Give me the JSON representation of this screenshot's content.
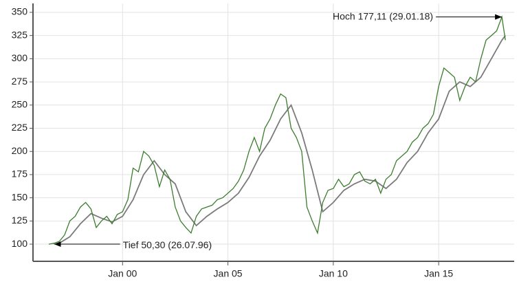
{
  "chart_data": {
    "type": "line",
    "xlim": [
      "1995-10",
      "2018-08"
    ],
    "xticks": [
      {
        "value": "2000-01",
        "label": "Jan 00"
      },
      {
        "value": "2005-01",
        "label": "Jan 05"
      },
      {
        "value": "2010-01",
        "label": "Jan 10"
      },
      {
        "value": "2015-01",
        "label": "Jan 15"
      }
    ],
    "ylim": [
      81.5,
      359.6
    ],
    "yticks": [
      100,
      125,
      150,
      175,
      200,
      225,
      250,
      275,
      300,
      325,
      350
    ],
    "grid": true,
    "series": [
      {
        "color": "#3a7d2c",
        "x": [
          "1996-07",
          "1996-10",
          "1997-01",
          "1997-04",
          "1997-07",
          "1997-10",
          "1998-01",
          "1998-04",
          "1998-07",
          "1998-10",
          "1999-01",
          "1999-04",
          "1999-07",
          "1999-10",
          "2000-01",
          "2000-04",
          "2000-07",
          "2000-10",
          "2001-01",
          "2001-04",
          "2001-07",
          "2001-10",
          "2002-01",
          "2002-04",
          "2002-07",
          "2002-10",
          "2003-01",
          "2003-04",
          "2003-07",
          "2003-10",
          "2004-01",
          "2004-04",
          "2004-07",
          "2004-10",
          "2005-01",
          "2005-04",
          "2005-07",
          "2005-10",
          "2006-01",
          "2006-04",
          "2006-07",
          "2006-10",
          "2007-01",
          "2007-04",
          "2007-07",
          "2007-10",
          "2008-01",
          "2008-04",
          "2008-07",
          "2008-10",
          "2009-01",
          "2009-04",
          "2009-07",
          "2009-10",
          "2010-01",
          "2010-04",
          "2010-07",
          "2010-10",
          "2011-01",
          "2011-04",
          "2011-07",
          "2011-10",
          "2012-01",
          "2012-04",
          "2012-07",
          "2012-10",
          "2013-01",
          "2013-04",
          "2013-07",
          "2013-10",
          "2014-01",
          "2014-04",
          "2014-07",
          "2014-10",
          "2015-01",
          "2015-04",
          "2015-07",
          "2015-10",
          "2016-01",
          "2016-04",
          "2016-07",
          "2016-10",
          "2017-01",
          "2017-04",
          "2017-07",
          "2017-10",
          "2018-01",
          "2018-03"
        ],
        "values": [
          100,
          101,
          103,
          110,
          125,
          130,
          140,
          145,
          138,
          118,
          125,
          130,
          122,
          132,
          135,
          148,
          182,
          178,
          200,
          195,
          185,
          162,
          180,
          170,
          140,
          125,
          118,
          112,
          130,
          138,
          140,
          142,
          148,
          150,
          155,
          160,
          168,
          180,
          200,
          215,
          200,
          225,
          235,
          250,
          262,
          258,
          225,
          215,
          200,
          140,
          125,
          112,
          145,
          158,
          160,
          170,
          162,
          165,
          175,
          178,
          168,
          165,
          170,
          155,
          170,
          175,
          190,
          195,
          200,
          210,
          215,
          225,
          230,
          240,
          270,
          290,
          285,
          280,
          255,
          270,
          280,
          275,
          300,
          320,
          325,
          330,
          345,
          320
        ]
      },
      {
        "color": "#7a7a7a",
        "x": [
          "1997-01",
          "1997-07",
          "1998-01",
          "1998-07",
          "1999-01",
          "1999-07",
          "2000-01",
          "2000-07",
          "2001-01",
          "2001-07",
          "2002-01",
          "2002-07",
          "2003-01",
          "2003-07",
          "2004-01",
          "2004-07",
          "2005-01",
          "2005-07",
          "2006-01",
          "2006-07",
          "2007-01",
          "2007-07",
          "2008-01",
          "2008-07",
          "2009-01",
          "2009-07",
          "2010-01",
          "2010-07",
          "2011-01",
          "2011-07",
          "2012-01",
          "2012-07",
          "2013-01",
          "2013-07",
          "2014-01",
          "2014-07",
          "2015-01",
          "2015-07",
          "2016-01",
          "2016-07",
          "2017-01",
          "2017-07",
          "2018-01",
          "2018-03"
        ],
        "values": [
          101,
          108,
          122,
          133,
          128,
          124,
          130,
          148,
          175,
          190,
          175,
          165,
          135,
          120,
          130,
          138,
          145,
          155,
          172,
          195,
          212,
          235,
          250,
          220,
          180,
          135,
          145,
          158,
          165,
          170,
          168,
          160,
          170,
          188,
          200,
          220,
          235,
          265,
          275,
          270,
          280,
          300,
          320,
          325
        ]
      }
    ],
    "annotations": [
      {
        "text": "Hoch 177,11 (29.01.18)",
        "x": "2018-01",
        "y": 345,
        "side": "left"
      },
      {
        "text": "Tief 50,30 (26.07.96)",
        "x": "1996-10",
        "y": 100,
        "side": "right"
      }
    ]
  }
}
